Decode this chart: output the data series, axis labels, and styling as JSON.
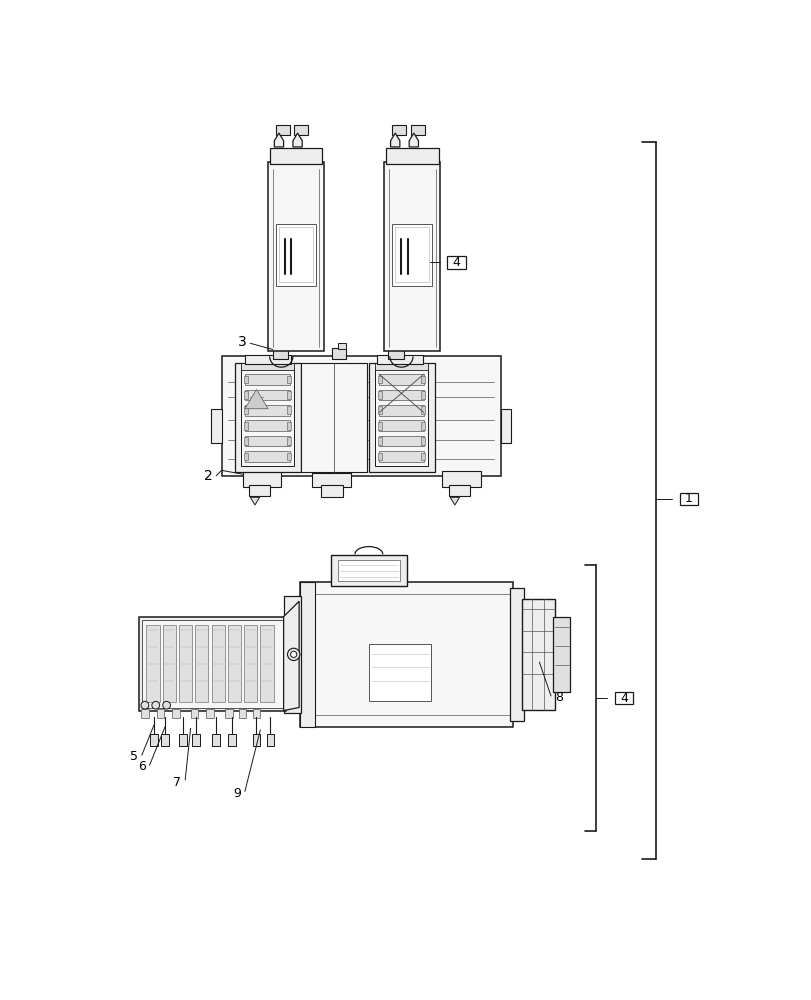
{
  "bg": "#ffffff",
  "lc": "#1a1a1a",
  "lc2": "#555555",
  "fc0": "#ffffff",
  "fc1": "#f7f7f7",
  "fc2": "#eeeeee",
  "fc3": "#e0e0e0",
  "fc4": "#cccccc",
  "fc5": "#bbbbbb"
}
